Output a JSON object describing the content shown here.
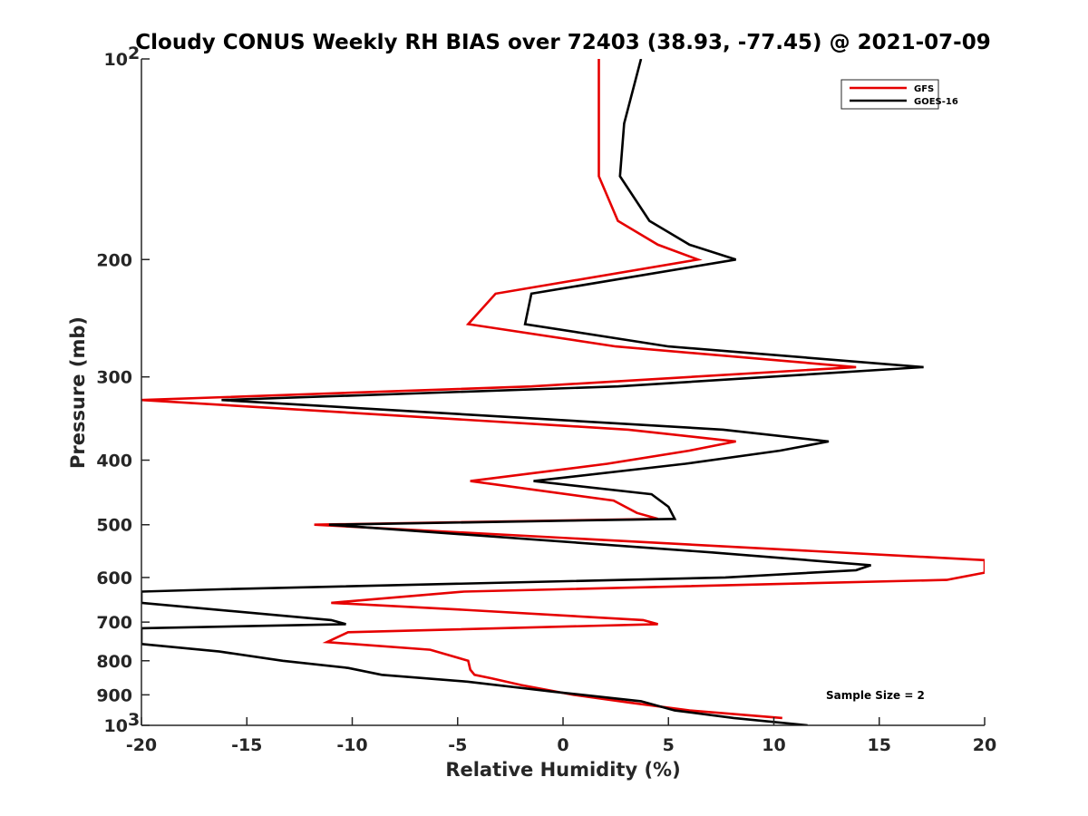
{
  "chart_data": {
    "type": "line",
    "title": "Cloudy CONUS Weekly RH BIAS over 72403 (38.93, -77.45) @ 2021-07-09",
    "xlabel": "Relative Humidity (%)",
    "ylabel": "Pressure (mb)",
    "xlim": [
      -20,
      20
    ],
    "ylim": [
      100,
      1000
    ],
    "y_scale": "log",
    "y_reversed": true,
    "grid": false,
    "legend_position": "top-right",
    "x_ticks": [
      -20,
      -15,
      -10,
      -5,
      0,
      5,
      10,
      15,
      20
    ],
    "x_tick_labels": [
      "-20",
      "-15",
      "-10",
      "-5",
      "0",
      "5",
      "10",
      "15",
      "20"
    ],
    "y_ticks": [
      100,
      200,
      300,
      400,
      500,
      600,
      700,
      800,
      900,
      1000
    ],
    "y_tick_labels": [
      {
        "base": "10",
        "exp": "2"
      },
      {
        "base": "200",
        "exp": ""
      },
      {
        "base": "300",
        "exp": ""
      },
      {
        "base": "400",
        "exp": ""
      },
      {
        "base": "500",
        "exp": ""
      },
      {
        "base": "600",
        "exp": ""
      },
      {
        "base": "700",
        "exp": ""
      },
      {
        "base": "800",
        "exp": ""
      },
      {
        "base": "900",
        "exp": ""
      },
      {
        "base": "10",
        "exp": "3"
      }
    ],
    "annotation": "Sample Size = 2",
    "series": [
      {
        "name": "GFS",
        "color": "#e60000",
        "points": [
          [
            1.7,
            100
          ],
          [
            1.7,
            125
          ],
          [
            1.7,
            150
          ],
          [
            2.6,
            175
          ],
          [
            4.5,
            190
          ],
          [
            6.4,
            200
          ],
          [
            -3.2,
            225
          ],
          [
            -4.5,
            250
          ],
          [
            2.5,
            270
          ],
          [
            13.9,
            290
          ],
          [
            -1.5,
            310
          ],
          [
            -20,
            325
          ],
          [
            3.1,
            360
          ],
          [
            8.2,
            375
          ],
          [
            6.0,
            387
          ],
          [
            2.1,
            405
          ],
          [
            -4.4,
            430
          ],
          [
            2.4,
            460
          ],
          [
            3.5,
            480
          ],
          [
            4.5,
            490
          ],
          [
            -11.8,
            500
          ],
          [
            20,
            565
          ],
          [
            20,
            590
          ],
          [
            18.2,
            605
          ],
          [
            -4.7,
            630
          ],
          [
            -11.0,
            655
          ],
          [
            -5.0,
            670
          ],
          [
            3.8,
            695
          ],
          [
            4.5,
            705
          ],
          [
            -10.2,
            725
          ],
          [
            -11.2,
            750
          ],
          [
            -6.3,
            770
          ],
          [
            -4.5,
            800
          ],
          [
            -4.4,
            825
          ],
          [
            -4.2,
            840
          ],
          [
            -3.4,
            850
          ],
          [
            -2.0,
            870
          ],
          [
            0.5,
            900
          ],
          [
            3.2,
            925
          ],
          [
            6.0,
            950
          ],
          [
            10.4,
            975
          ]
        ]
      },
      {
        "name": "GOES-16",
        "color": "#000000",
        "points": [
          [
            3.7,
            100
          ],
          [
            2.9,
            125
          ],
          [
            2.7,
            150
          ],
          [
            4.1,
            175
          ],
          [
            6.0,
            190
          ],
          [
            8.2,
            200
          ],
          [
            -1.5,
            225
          ],
          [
            -1.8,
            250
          ],
          [
            5.0,
            270
          ],
          [
            17.1,
            290
          ],
          [
            2.6,
            310
          ],
          [
            -16.2,
            325
          ],
          [
            7.6,
            360
          ],
          [
            12.6,
            375
          ],
          [
            10.3,
            387
          ],
          [
            5.8,
            405
          ],
          [
            -1.4,
            430
          ],
          [
            4.2,
            450
          ],
          [
            5.0,
            470
          ],
          [
            5.3,
            490
          ],
          [
            -11.1,
            500
          ],
          [
            7.0,
            550
          ],
          [
            14.6,
            575
          ],
          [
            13.9,
            585
          ],
          [
            7.7,
            600
          ],
          [
            -16.3,
            625
          ],
          [
            -20,
            630
          ],
          [
            -20,
            655
          ],
          [
            -11.0,
            695
          ],
          [
            -10.3,
            705
          ],
          [
            -20,
            715
          ],
          [
            -20,
            755
          ],
          [
            -16.3,
            775
          ],
          [
            -13.3,
            800
          ],
          [
            -10.2,
            820
          ],
          [
            -8.6,
            840
          ],
          [
            -4.5,
            860
          ],
          [
            -0.5,
            890
          ],
          [
            3.7,
            920
          ],
          [
            5.3,
            950
          ],
          [
            8.1,
            975
          ],
          [
            11.6,
            1000
          ]
        ]
      }
    ]
  }
}
